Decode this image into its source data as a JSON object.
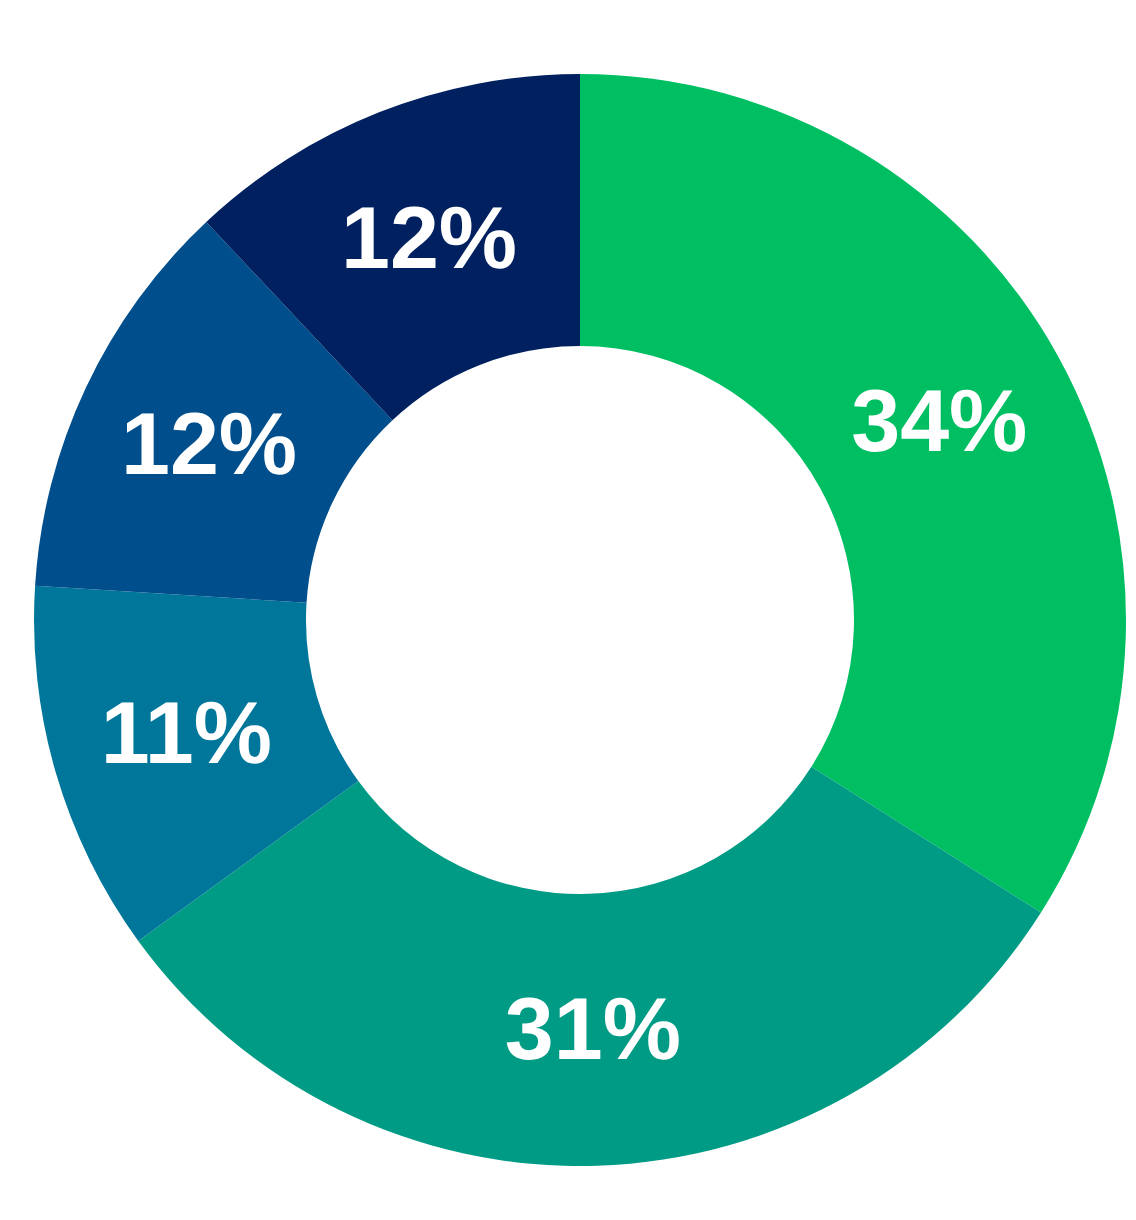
{
  "chart_data": {
    "type": "donut",
    "categories": [
      null,
      null,
      null,
      null,
      null
    ],
    "values": [
      34,
      31,
      11,
      12,
      12
    ],
    "colors": [
      "#00bf63",
      "#009b84",
      "#00779a",
      "#004f8c",
      "#002060"
    ],
    "value_labels": [
      "34%",
      "31%",
      "11%",
      "12%",
      "12%"
    ],
    "legend": false
  }
}
